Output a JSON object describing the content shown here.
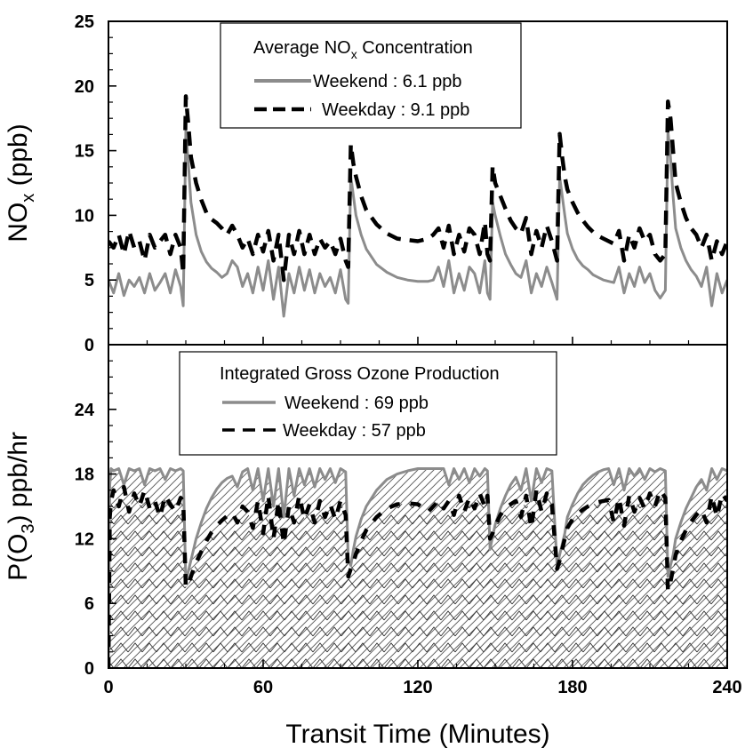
{
  "chart_data": [
    {
      "type": "line",
      "ylabel": "NO<sub>x</sub> (ppb)",
      "ylabel_parts": [
        "NO",
        "x",
        " (ppb)"
      ],
      "xlim": [
        0,
        240
      ],
      "ylim": [
        0,
        25
      ],
      "yticks": [
        0,
        5,
        10,
        15,
        20,
        25
      ],
      "ytick_labels": [
        "0",
        "5",
        "10",
        "15",
        "20",
        "25"
      ],
      "legend": {
        "title_parts": [
          "Average NO",
          "x",
          " Concentration"
        ],
        "position": "top-center"
      },
      "series": [
        {
          "name": "Weekend : 6.1 ppb",
          "style": "solid",
          "color": "#8c8c8c",
          "x": [
            0,
            2,
            4,
            6,
            8,
            10,
            12,
            14,
            16,
            18,
            20,
            22,
            24,
            26,
            28,
            29,
            30,
            31,
            32,
            34,
            36,
            38,
            40,
            42,
            44,
            46,
            48,
            50,
            52,
            54,
            56,
            58,
            60,
            62,
            64,
            66,
            68,
            70,
            72,
            74,
            76,
            78,
            80,
            82,
            84,
            86,
            88,
            90,
            92,
            93,
            94,
            95,
            96,
            98,
            100,
            104,
            108,
            112,
            116,
            120,
            124,
            126,
            128,
            130,
            132,
            134,
            136,
            138,
            140,
            142,
            144,
            146,
            147,
            148,
            149,
            150,
            152,
            154,
            156,
            158,
            160,
            162,
            164,
            166,
            168,
            170,
            172,
            174,
            175,
            176,
            177,
            178,
            180,
            182,
            184,
            186,
            188,
            190,
            192,
            194,
            196,
            198,
            200,
            202,
            204,
            206,
            208,
            210,
            212,
            214,
            216,
            217,
            218,
            219,
            220,
            222,
            224,
            226,
            228,
            230,
            232,
            234,
            236,
            238,
            240
          ],
          "y": [
            5,
            4,
            5.5,
            3.8,
            5,
            4.5,
            5.2,
            4,
            5.5,
            4.2,
            4.8,
            5.5,
            4,
            5.8,
            4.5,
            3,
            16.5,
            14,
            11,
            8.5,
            7.2,
            6.4,
            5.9,
            5.6,
            5.2,
            5.5,
            6.5,
            6,
            4.5,
            5.5,
            4,
            6,
            4.2,
            6.5,
            3.5,
            6,
            2.2,
            5.5,
            4,
            6,
            4.2,
            5.8,
            4,
            5.5,
            4.5,
            5.2,
            4,
            5.8,
            3.5,
            3.2,
            13,
            11.5,
            10,
            8.5,
            7.4,
            6.2,
            5.6,
            5.2,
            5,
            4.9,
            4.9,
            5,
            6,
            4.5,
            6.5,
            4,
            5.5,
            4.2,
            6,
            5.5,
            4,
            6.5,
            4,
            3.5,
            11,
            10,
            8.4,
            7,
            6.2,
            5.5,
            5.2,
            6.5,
            4,
            5.5,
            4.5,
            6,
            4.8,
            3.5,
            13,
            11.5,
            10,
            8.6,
            7.4,
            6.6,
            6.1,
            5.8,
            5.4,
            5.2,
            5,
            4.9,
            4.8,
            6,
            4,
            5.5,
            4.5,
            6,
            4.8,
            5.5,
            4.2,
            3.6,
            4.2,
            16.5,
            14.5,
            11.5,
            9,
            7.5,
            6.5,
            5.8,
            5.3,
            4.5,
            6,
            3,
            5.5,
            4,
            5
          ]
        },
        {
          "name": "Weekday : 9.1 ppb",
          "style": "dashed",
          "color": "#000000",
          "x": [
            0,
            2,
            4,
            6,
            8,
            10,
            12,
            14,
            16,
            18,
            20,
            22,
            24,
            26,
            28,
            29,
            30,
            31,
            32,
            34,
            36,
            38,
            40,
            42,
            44,
            46,
            48,
            50,
            52,
            54,
            56,
            58,
            60,
            62,
            64,
            66,
            68,
            70,
            72,
            74,
            76,
            78,
            80,
            82,
            84,
            86,
            88,
            90,
            92,
            93,
            94,
            95,
            96,
            98,
            100,
            104,
            108,
            112,
            116,
            120,
            124,
            126,
            128,
            130,
            132,
            134,
            136,
            138,
            140,
            142,
            144,
            146,
            147,
            148,
            149,
            150,
            152,
            154,
            156,
            158,
            160,
            162,
            164,
            166,
            168,
            170,
            172,
            174,
            175,
            176,
            177,
            178,
            180,
            182,
            184,
            186,
            188,
            190,
            192,
            194,
            196,
            198,
            200,
            202,
            204,
            206,
            208,
            210,
            212,
            214,
            216,
            217,
            218,
            219,
            220,
            222,
            224,
            226,
            228,
            230,
            232,
            234,
            236,
            238,
            240
          ],
          "y": [
            8,
            7.5,
            8.5,
            7,
            8.8,
            7.5,
            8,
            6.5,
            8.5,
            7.5,
            8,
            8.5,
            7,
            8.5,
            7.5,
            5.5,
            19.2,
            17,
            14.5,
            12.5,
            11.2,
            10.2,
            9.7,
            9.4,
            9,
            8.5,
            9.2,
            8.5,
            7.5,
            8.2,
            7,
            8.5,
            7.2,
            8.8,
            6.5,
            8.5,
            5,
            8.5,
            7,
            8.8,
            7,
            8.5,
            7,
            8.2,
            7.5,
            8,
            7,
            8.2,
            6.5,
            6,
            15.5,
            14,
            13,
            11.5,
            10.4,
            9.3,
            8.6,
            8.2,
            8.1,
            8,
            8.2,
            8.5,
            9,
            7.5,
            9.2,
            7,
            8.5,
            7.2,
            9,
            8.5,
            7,
            9.5,
            7,
            6.5,
            13.8,
            12.5,
            11.5,
            10.5,
            9.6,
            9,
            8.6,
            9.8,
            7,
            8.8,
            7.5,
            9.2,
            8,
            6.5,
            16.3,
            14.5,
            13,
            12,
            11,
            10.2,
            9.6,
            9.1,
            8.7,
            8.4,
            8.2,
            8,
            7.8,
            8.8,
            6.5,
            8.5,
            7.5,
            9,
            8,
            8.5,
            7,
            6.5,
            7,
            18.8,
            17.5,
            15,
            12.5,
            11,
            9.8,
            9,
            8.5,
            7.5,
            8.5,
            6.5,
            8,
            7,
            8
          ]
        }
      ]
    },
    {
      "type": "area",
      "ylabel": "P(O<sub>3</sub>) ppb/hr",
      "ylabel_parts": [
        "P(O",
        "3",
        ") ppb/hr"
      ],
      "xlabel": "Transit Time (Minutes)",
      "xlim": [
        0,
        240
      ],
      "ylim": [
        0,
        30
      ],
      "xticks": [
        0,
        60,
        120,
        180,
        240
      ],
      "xtick_labels": [
        "0",
        "60",
        "120",
        "180",
        "240"
      ],
      "yticks": [
        0,
        6,
        12,
        18,
        24
      ],
      "ytick_labels": [
        "0",
        "6",
        "12",
        "18",
        "24"
      ],
      "legend": {
        "title": "Integrated Gross Ozone Production",
        "position": "top-center"
      },
      "series": [
        {
          "name": "Weekend : 69 ppb",
          "style": "solid",
          "fill": "hatch-diagonal",
          "color": "#8c8c8c",
          "x": [
            0,
            0.5,
            1,
            2,
            4,
            6,
            8,
            10,
            12,
            14,
            16,
            18,
            20,
            22,
            24,
            26,
            28,
            29,
            30,
            31,
            32,
            34,
            36,
            38,
            40,
            42,
            44,
            46,
            48,
            50,
            52,
            54,
            56,
            58,
            60,
            62,
            64,
            66,
            68,
            70,
            72,
            74,
            76,
            78,
            80,
            82,
            84,
            86,
            88,
            90,
            92,
            93,
            94,
            95,
            96,
            98,
            100,
            104,
            108,
            112,
            116,
            120,
            124,
            128,
            130,
            132,
            134,
            136,
            138,
            140,
            142,
            144,
            146,
            147,
            148,
            149,
            150,
            152,
            154,
            156,
            158,
            160,
            162,
            164,
            166,
            168,
            170,
            172,
            174,
            175,
            176,
            177,
            178,
            180,
            182,
            184,
            186,
            188,
            190,
            192,
            194,
            196,
            198,
            200,
            202,
            204,
            206,
            208,
            210,
            212,
            214,
            216,
            217,
            218,
            219,
            220,
            222,
            224,
            226,
            228,
            230,
            232,
            234,
            236,
            238,
            240
          ],
          "y": [
            0,
            17,
            18.5,
            18.3,
            18.5,
            17,
            18.5,
            18.3,
            18.5,
            17,
            18.5,
            18.3,
            18.5,
            17.5,
            18.5,
            18.3,
            18.5,
            18.3,
            8,
            9,
            10,
            12,
            13.5,
            14.8,
            15.8,
            16.6,
            17.2,
            17.6,
            17.8,
            16.8,
            18.2,
            18.5,
            16.5,
            18.5,
            15.5,
            18.5,
            15,
            18.5,
            14,
            18.5,
            16,
            18.5,
            17,
            18.5,
            16.8,
            18.5,
            17.5,
            18.5,
            17.2,
            18.5,
            18.2,
            10,
            9.5,
            11,
            12.2,
            13.8,
            15,
            16.5,
            17.5,
            18,
            18.3,
            18.5,
            18.5,
            18.5,
            18.5,
            17,
            18.5,
            17.5,
            18.5,
            17.2,
            18.5,
            17.8,
            18.5,
            18.3,
            11,
            12.2,
            13.3,
            14.8,
            16,
            17,
            17.7,
            16.5,
            18.5,
            15.5,
            18.5,
            17.2,
            18.5,
            18.3,
            9.5,
            10.5,
            11.5,
            12.5,
            14,
            15.2,
            16.2,
            17,
            17.5,
            17.9,
            18.2,
            18.4,
            18.5,
            17,
            18.5,
            16.5,
            18.5,
            17.8,
            18.5,
            17.5,
            18.5,
            18.2,
            18.5,
            18.3,
            8.5,
            9.5,
            10.5,
            12,
            13.5,
            14.8,
            15.8,
            16.8,
            17.5,
            16.5,
            18.5,
            17.5,
            18.5,
            18.3
          ]
        },
        {
          "name": "Weekday : 57 ppb",
          "style": "dashed",
          "fill": "hatch-chevron",
          "color": "#000000",
          "x": [
            0,
            0.5,
            1,
            2,
            4,
            6,
            8,
            10,
            12,
            14,
            16,
            18,
            20,
            22,
            24,
            26,
            28,
            29,
            30,
            31,
            32,
            34,
            36,
            38,
            40,
            42,
            44,
            46,
            48,
            50,
            52,
            54,
            56,
            58,
            60,
            62,
            64,
            66,
            68,
            70,
            72,
            74,
            76,
            78,
            80,
            82,
            84,
            86,
            88,
            90,
            92,
            93,
            94,
            95,
            96,
            98,
            100,
            104,
            108,
            112,
            116,
            120,
            124,
            128,
            130,
            132,
            134,
            136,
            138,
            140,
            142,
            144,
            146,
            147,
            148,
            149,
            150,
            152,
            154,
            156,
            158,
            160,
            162,
            164,
            166,
            168,
            170,
            172,
            174,
            175,
            176,
            177,
            178,
            180,
            182,
            184,
            186,
            188,
            190,
            192,
            194,
            196,
            198,
            200,
            202,
            204,
            206,
            208,
            210,
            212,
            214,
            216,
            217,
            218,
            219,
            220,
            222,
            224,
            226,
            228,
            230,
            232,
            234,
            236,
            238,
            240
          ],
          "y": [
            0,
            14,
            15.5,
            16.5,
            15,
            16.8,
            14.5,
            16.2,
            15,
            16.5,
            14.8,
            15.5,
            14,
            16,
            15.2,
            14.5,
            15.8,
            15.5,
            7.5,
            7.8,
            8.5,
            9.8,
            10.8,
            11.8,
            12.6,
            13.2,
            13.7,
            14.1,
            14.4,
            13.5,
            15,
            14.5,
            13,
            15.5,
            12.5,
            16,
            12,
            15.5,
            11.5,
            15,
            13.5,
            16,
            13.8,
            15.2,
            13.5,
            15.5,
            14,
            15.2,
            13.8,
            15.5,
            14.2,
            8.5,
            9.2,
            9.8,
            10.6,
            11.8,
            12.8,
            14,
            14.8,
            15.2,
            15.3,
            15.2,
            14.5,
            15.5,
            14.8,
            15.5,
            14.2,
            16,
            14.5,
            15.8,
            14.8,
            16.2,
            15,
            16,
            12,
            12.5,
            13.2,
            14.2,
            14.8,
            15.2,
            15.5,
            14,
            16,
            13,
            16.5,
            14.5,
            16.2,
            15.2,
            9.2,
            10,
            11,
            12,
            13,
            13.8,
            14.3,
            14.7,
            15,
            15.2,
            15.4,
            15.5,
            15.6,
            13.5,
            15.8,
            13.2,
            16,
            14.5,
            15.8,
            14.8,
            16.2,
            15,
            16.5,
            15.8,
            7.2,
            8,
            9.2,
            10.5,
            11.8,
            12.8,
            13.6,
            14.2,
            14.7,
            13.5,
            16,
            14,
            16.2,
            15.5
          ]
        }
      ]
    }
  ]
}
